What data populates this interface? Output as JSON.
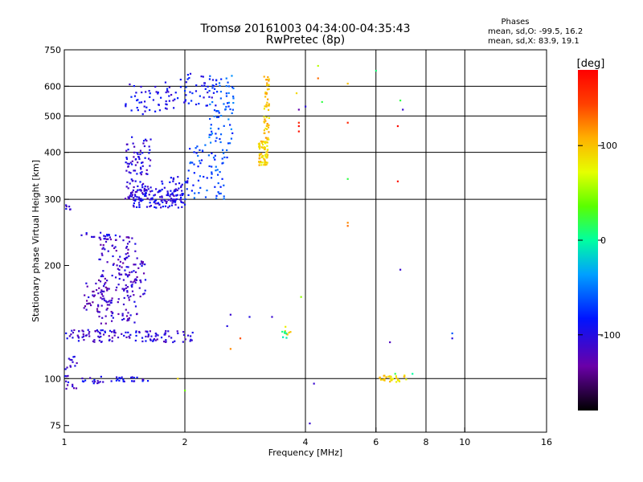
{
  "chart_data": {
    "type": "scatter",
    "title": "Tromsø 20161003 04:34:00-04:35:43",
    "subtitle": "RwPretec (8p)",
    "stats": {
      "heading": "Phases",
      "line_o": "mean, sd,O: -99.5, 16.2",
      "line_x": "mean, sd,X:  83.9, 19.1"
    },
    "xlabel": "Frequency [MHz]",
    "ylabel": "Stationary phase Virtual Height [km]",
    "x_scale": "log",
    "y_scale": "log",
    "xlim": [
      1,
      16
    ],
    "ylim": [
      72,
      750
    ],
    "x_ticks": [
      1,
      2,
      4,
      6,
      8,
      10,
      16
    ],
    "y_ticks": [
      75,
      100,
      200,
      300,
      400,
      500,
      600,
      750
    ],
    "x_gridlines": [
      2,
      4,
      6,
      8,
      10
    ],
    "y_gridlines": [
      100,
      300,
      400,
      500,
      600
    ],
    "colorbar": {
      "label": "[deg]",
      "range": [
        -180,
        180
      ],
      "ticks": [
        100,
        0,
        -100
      ],
      "colormap": "rainbow"
    },
    "points": {
      "comment_columns": [
        "frequency_MHz",
        "height_km",
        "phase_deg"
      ],
      "clusters": [
        {
          "f": [
            1.42,
            1.9
          ],
          "h": [
            505,
            615
          ],
          "p": -95,
          "n": 55
        },
        {
          "f": [
            1.9,
            2.4
          ],
          "h": [
            530,
            650
          ],
          "p": -90,
          "n": 45
        },
        {
          "f": [
            2.3,
            2.65
          ],
          "h": [
            420,
            650
          ],
          "p": -60,
          "n": 70
        },
        {
          "f": [
            2.0,
            2.55
          ],
          "h": [
            300,
            420
          ],
          "p": -70,
          "n": 70
        },
        {
          "f": [
            1.42,
            1.65
          ],
          "h": [
            300,
            440
          ],
          "p": -105,
          "n": 90
        },
        {
          "f": [
            1.45,
            2.0
          ],
          "h": [
            285,
            320
          ],
          "p": -100,
          "n": 140
        },
        {
          "f": [
            1.75,
            2.1
          ],
          "h": [
            305,
            345
          ],
          "p": -95,
          "n": 30
        },
        {
          "f": [
            3.05,
            3.22
          ],
          "h": [
            370,
            430
          ],
          "p": 95,
          "n": 70
        },
        {
          "f": [
            3.15,
            3.25
          ],
          "h": [
            430,
            640
          ],
          "p": 100,
          "n": 50
        },
        {
          "f": [
            1.12,
            1.3
          ],
          "h": [
            150,
            185
          ],
          "p": -120,
          "n": 50
        },
        {
          "f": [
            1.22,
            1.52
          ],
          "h": [
            140,
            240
          ],
          "p": -115,
          "n": 130
        },
        {
          "f": [
            1.35,
            1.6
          ],
          "h": [
            160,
            210
          ],
          "p": -110,
          "n": 50
        },
        {
          "f": [
            1.0,
            1.35
          ],
          "h": [
            125,
            135
          ],
          "p": -110,
          "n": 60
        },
        {
          "f": [
            1.35,
            2.1
          ],
          "h": [
            125,
            134
          ],
          "p": -105,
          "n": 65
        },
        {
          "f": [
            1.1,
            1.35
          ],
          "h": [
            237,
            245
          ],
          "p": -100,
          "n": 18
        },
        {
          "f": [
            1.0,
            1.08
          ],
          "h": [
            105,
            115
          ],
          "p": -105,
          "n": 12
        },
        {
          "f": [
            1.0,
            1.25
          ],
          "h": [
            97,
            102
          ],
          "p": -100,
          "n": 22
        },
        {
          "f": [
            1.3,
            1.65
          ],
          "h": [
            98,
            101
          ],
          "p": -100,
          "n": 22
        },
        {
          "f": [
            1.0,
            1.08
          ],
          "h": [
            93,
            97
          ],
          "p": -110,
          "n": 6
        },
        {
          "f": [
            1.0,
            1.06
          ],
          "h": [
            280,
            300
          ],
          "p": -110,
          "n": 6
        },
        {
          "f": [
            6.1,
            7.2
          ],
          "h": [
            98,
            102
          ],
          "p": 90,
          "n": 30
        },
        {
          "f": [
            3.55,
            3.68
          ],
          "h": [
            128,
            138
          ],
          "p": 80,
          "n": 8
        },
        {
          "f": [
            3.5,
            3.6
          ],
          "h": [
            128,
            136
          ],
          "p": 0,
          "n": 6
        }
      ],
      "singles": [
        [
          2.6,
          148,
          -110
        ],
        [
          2.9,
          146,
          -100
        ],
        [
          3.3,
          146,
          -110
        ],
        [
          2.6,
          120,
          120
        ],
        [
          2.75,
          128,
          140
        ],
        [
          3.85,
          480,
          160
        ],
        [
          3.85,
          470,
          175
        ],
        [
          3.85,
          455,
          170
        ],
        [
          3.85,
          520,
          -130
        ],
        [
          4.0,
          530,
          -105
        ],
        [
          4.3,
          680,
          60
        ],
        [
          4.3,
          630,
          130
        ],
        [
          4.4,
          545,
          20
        ],
        [
          5.1,
          610,
          100
        ],
        [
          5.1,
          480,
          160
        ],
        [
          5.1,
          340,
          20
        ],
        [
          5.1,
          260,
          120
        ],
        [
          5.1,
          255,
          130
        ],
        [
          6.0,
          660,
          10
        ],
        [
          6.9,
          550,
          20
        ],
        [
          7.0,
          520,
          -110
        ],
        [
          6.8,
          470,
          175
        ],
        [
          6.8,
          335,
          170
        ],
        [
          6.9,
          195,
          -110
        ],
        [
          6.5,
          125,
          -120
        ],
        [
          6.3,
          100,
          100
        ],
        [
          6.7,
          103,
          20
        ],
        [
          7.4,
          103,
          0
        ],
        [
          9.3,
          132,
          -60
        ],
        [
          9.3,
          128,
          -100
        ],
        [
          4.2,
          97,
          -110
        ],
        [
          4.1,
          76,
          -110
        ],
        [
          1.92,
          100,
          90
        ],
        [
          2.0,
          93,
          40
        ],
        [
          3.9,
          165,
          50
        ],
        [
          3.8,
          575,
          90
        ],
        [
          2.55,
          138,
          -100
        ]
      ]
    }
  }
}
